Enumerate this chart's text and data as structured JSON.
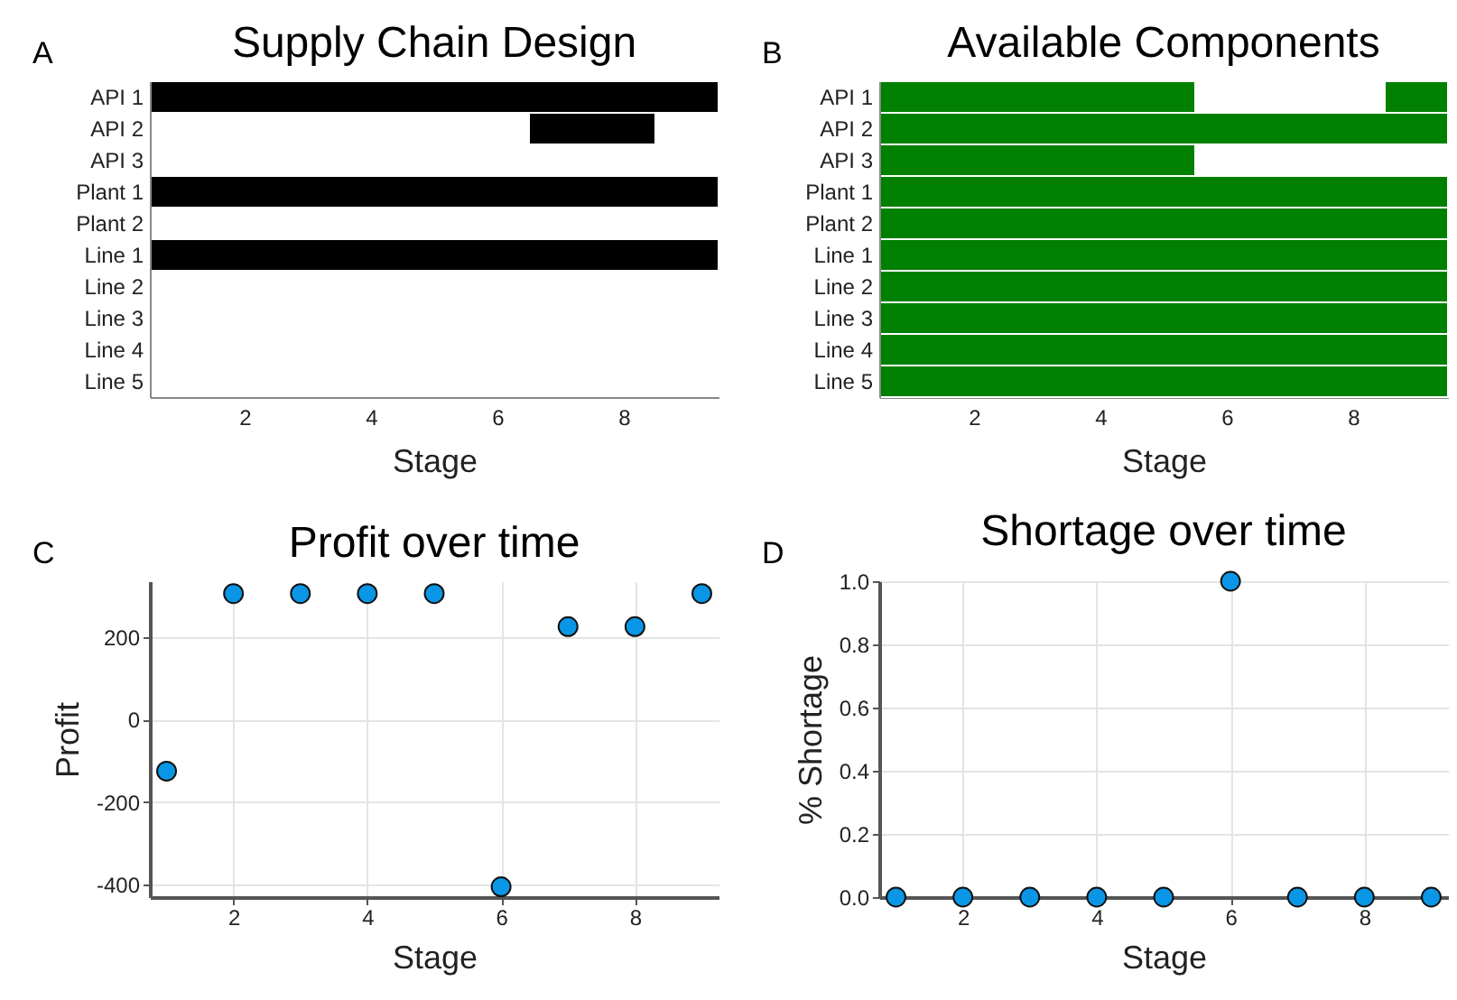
{
  "chart_data": [
    {
      "type": "bar",
      "orientation": "horizontal",
      "title": "Supply Chain Design",
      "xlabel": "Stage",
      "annotations": [
        "A"
      ],
      "categories": [
        "API 1",
        "API 2",
        "API 3",
        "Plant 1",
        "Plant 2",
        "Line 1",
        "Line 2",
        "Line 3",
        "Line 4",
        "Line 5"
      ],
      "xlim": [
        0.5,
        9.5
      ],
      "xticks": [
        2,
        4,
        6,
        8
      ],
      "series": [
        {
          "color": "#000000",
          "values": [
            9,
            2,
            null,
            9,
            null,
            9,
            null,
            null,
            null,
            null
          ],
          "base": [
            0.5,
            6.5,
            null,
            0.5,
            null,
            0.5,
            null,
            null,
            null,
            null
          ]
        }
      ]
    },
    {
      "type": "bar",
      "orientation": "horizontal",
      "title": "Available Components",
      "xlabel": "Stage",
      "annotations": [
        "B"
      ],
      "categories": [
        "API 1",
        "API 2",
        "API 3",
        "Plant 1",
        "Plant 2",
        "Line 1",
        "Line 2",
        "Line 3",
        "Line 4",
        "Line 5"
      ],
      "xlim": [
        0.5,
        9.5
      ],
      "xticks": [
        2,
        4,
        6,
        8
      ],
      "series": [
        {
          "color": "#008000",
          "values": [
            5,
            9,
            5,
            9,
            9,
            9,
            9,
            9,
            9,
            9
          ],
          "base": [
            0.5,
            0.5,
            0.5,
            0.5,
            0.5,
            0.5,
            0.5,
            0.5,
            0.5,
            0.5
          ]
        },
        {
          "color": "#008000",
          "values": [
            1,
            null,
            null,
            null,
            null,
            null,
            null,
            null,
            null,
            null
          ],
          "base": [
            8.5,
            null,
            null,
            null,
            null,
            null,
            null,
            null,
            null,
            null
          ]
        }
      ]
    },
    {
      "type": "scatter",
      "title": "Profit over time",
      "xlabel": "Stage",
      "ylabel": "Profit",
      "annotations": [
        "C"
      ],
      "x": [
        1,
        2,
        3,
        4,
        5,
        6,
        7,
        8,
        9
      ],
      "xlim": [
        0.75,
        9.25
      ],
      "xticks": [
        2,
        4,
        6,
        8
      ],
      "ylim": [
        -430,
        335
      ],
      "yticks": [
        -400,
        -200,
        0,
        200
      ],
      "grid": true,
      "marker": "circle",
      "series": [
        {
          "color": "#0a96e6",
          "values": [
            -125,
            305,
            305,
            305,
            305,
            -405,
            225,
            225,
            305
          ]
        }
      ]
    },
    {
      "type": "scatter",
      "title": "Shortage over time",
      "xlabel": "Stage",
      "ylabel": "% Shortage",
      "annotations": [
        "D"
      ],
      "x": [
        1,
        2,
        3,
        4,
        5,
        6,
        7,
        8,
        9
      ],
      "xlim": [
        0.75,
        9.25
      ],
      "xticks": [
        2,
        4,
        6,
        8
      ],
      "ylim": [
        0,
        1
      ],
      "yticks": [
        {
          "value": 0,
          "label": "0.0"
        },
        {
          "value": 0.2,
          "label": "0.2"
        },
        {
          "value": 0.4,
          "label": "0.4"
        },
        {
          "value": 0.6,
          "label": "0.6"
        },
        {
          "value": 0.8,
          "label": "0.8"
        },
        {
          "value": 1,
          "label": "1.0"
        }
      ],
      "grid": true,
      "marker": "circle",
      "series": [
        {
          "color": "#0a96e6",
          "values": [
            0,
            0,
            0,
            0,
            0,
            1,
            0,
            0,
            0
          ]
        }
      ]
    }
  ]
}
